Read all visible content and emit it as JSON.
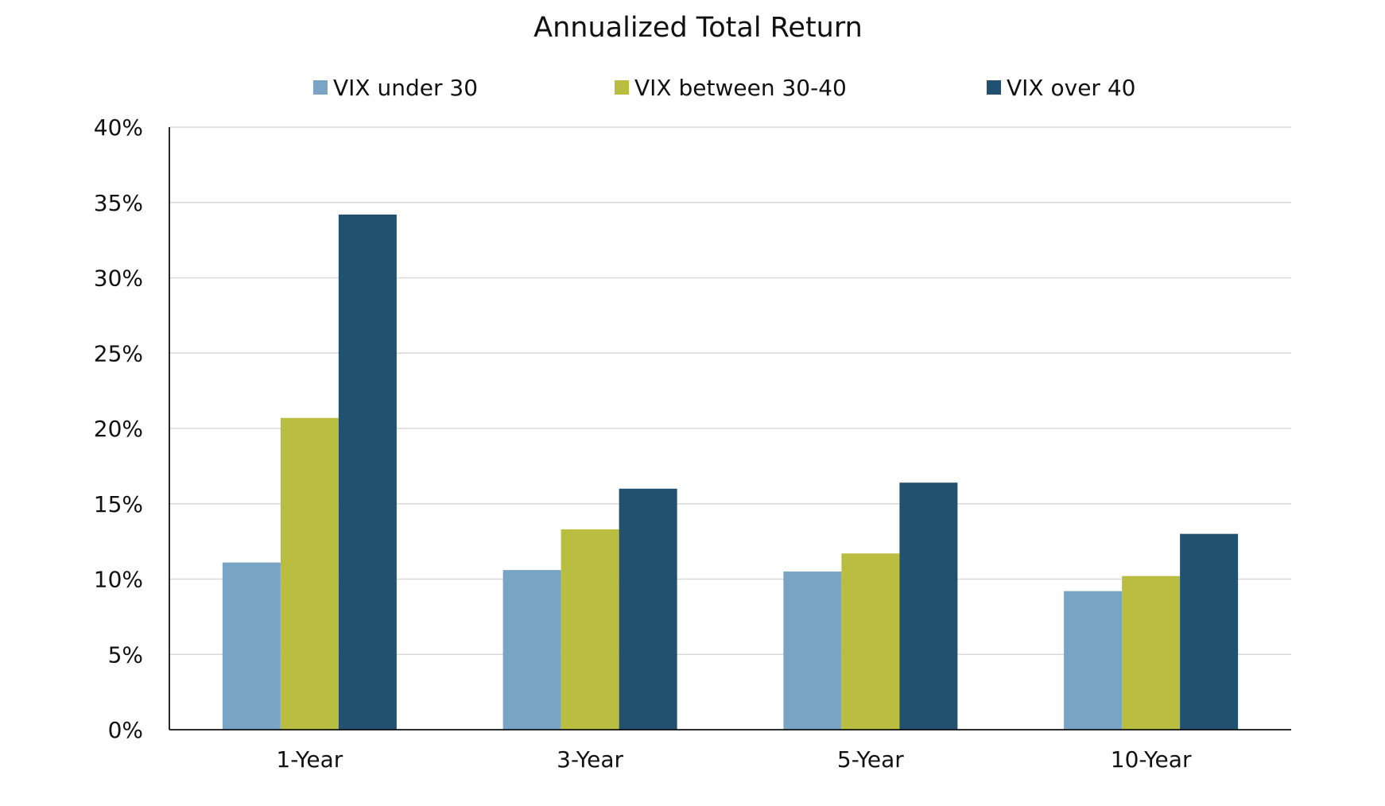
{
  "chart_data": {
    "type": "bar",
    "title": "Annualized Total Return",
    "xlabel": "",
    "ylabel": "",
    "categories": [
      "1-Year",
      "3-Year",
      "5-Year",
      "10-Year"
    ],
    "series": [
      {
        "name": "VIX under 30",
        "color": "#7aa4c4",
        "values": [
          11.1,
          10.6,
          10.5,
          9.2
        ]
      },
      {
        "name": "VIX between 30-40",
        "color": "#b9bd40",
        "values": [
          20.7,
          13.3,
          11.7,
          10.2
        ]
      },
      {
        "name": "VIX over 40",
        "color": "#22506f",
        "values": [
          34.2,
          16.0,
          16.4,
          13.0
        ]
      }
    ],
    "ylim": [
      0,
      40
    ],
    "yticks": [
      "0%",
      "5%",
      "10%",
      "15%",
      "20%",
      "25%",
      "30%",
      "35%",
      "40%"
    ],
    "ytick_values": [
      0,
      5,
      10,
      15,
      20,
      25,
      30,
      35,
      40
    ],
    "grid": true,
    "legend_position": "top"
  }
}
